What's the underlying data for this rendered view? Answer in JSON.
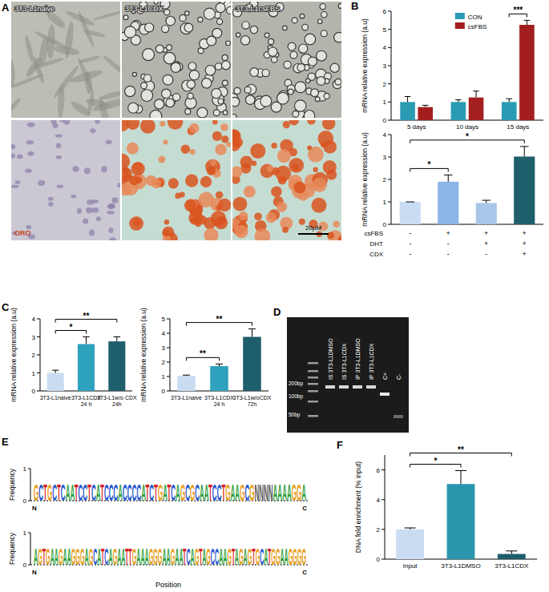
{
  "panel_labels": [
    "A",
    "B",
    "C",
    "D",
    "E",
    "F"
  ],
  "panel_a": {
    "labels": [
      "3T3-L1naive",
      "3T3-L1CDX",
      "3T3-L1csFBS"
    ],
    "stain": "ORO",
    "scale_bar": "20μM"
  },
  "chart_data": [
    {
      "type": "bar",
      "y_label": "mRNA relative expression (a.u)",
      "categories": [
        "5 days",
        "10 days",
        "15 days"
      ],
      "series": [
        {
          "name": "CON",
          "color": "#2a9bb3",
          "values": [
            1,
            1,
            1
          ],
          "errors": [
            0.3,
            0.12,
            0.18
          ]
        },
        {
          "name": "csFBS",
          "color": "#a31f1f",
          "values": [
            0.72,
            1.25,
            5.25
          ],
          "errors": [
            0.1,
            0.35,
            0.25
          ]
        }
      ],
      "ylim": [
        0,
        6
      ],
      "yticks": [
        0,
        1,
        2,
        3,
        4,
        5,
        6
      ],
      "legend": "top",
      "annotations": [
        {
          "text": "***",
          "groups": [
            2
          ]
        }
      ]
    },
    {
      "type": "bar",
      "y_label": "mRNA relative expression (a.u)",
      "values": [
        1,
        1.9,
        0.95,
        3.02
      ],
      "errors": [
        0,
        0.3,
        0.12,
        0.45
      ],
      "colors": [
        "#c9dcf2",
        "#8db5e6",
        "#a9c6e8",
        "#1f5e6b"
      ],
      "ylim": [
        0,
        4
      ],
      "yticks": [
        0,
        1,
        2,
        3,
        4
      ],
      "conditions": [
        {
          "name": "csFBS",
          "values": [
            "-",
            "+",
            "+",
            "+"
          ]
        },
        {
          "name": "DHT",
          "values": [
            "-",
            "-",
            "+",
            "+"
          ]
        },
        {
          "name": "CDX",
          "values": [
            "-",
            "-",
            "-",
            "+"
          ]
        }
      ],
      "annotations": [
        {
          "text": "*",
          "bars": [
            0,
            1
          ]
        },
        {
          "text": "*",
          "bars": [
            0,
            3
          ]
        }
      ]
    },
    {
      "type": "bar",
      "y_label": "mRNA relative expression (a.u)",
      "categories": [
        "3T3-L1naive",
        "3T3-L1CDX\n24 h",
        "3T3-L1w/o CDX\n24h"
      ],
      "values": [
        1,
        2.6,
        2.75
      ],
      "errors": [
        0.15,
        0.4,
        0.25
      ],
      "colors": [
        "#c9dcf2",
        "#2fa2bd",
        "#1f5e6b"
      ],
      "ylim": [
        0,
        4
      ],
      "yticks": [
        0,
        1,
        2,
        3,
        4
      ],
      "annotations": [
        {
          "text": "*",
          "bars": [
            0,
            1
          ]
        },
        {
          "text": "**",
          "bars": [
            0,
            2
          ]
        }
      ]
    },
    {
      "type": "bar",
      "y_label": "mRNA relative expression (a.u)",
      "categories": [
        "3T3-L1naive",
        "3T3-L1CDX\n24 h",
        "3T3-L1w/oCDX\n72h"
      ],
      "values": [
        1.05,
        1.72,
        3.75
      ],
      "errors": [
        0.05,
        0.15,
        0.55
      ],
      "colors": [
        "#c9dcf2",
        "#2fa2bd",
        "#1f5e6b"
      ],
      "ylim": [
        0,
        5
      ],
      "yticks": [
        0,
        1,
        2,
        3,
        4,
        5
      ],
      "annotations": [
        {
          "text": "**",
          "bars": [
            0,
            1
          ]
        },
        {
          "text": "**",
          "bars": [
            0,
            2
          ]
        }
      ]
    },
    {
      "type": "bar",
      "y_label": "DNA fold enrichment (% input)",
      "categories": [
        "Input",
        "3T3-L1DMSO",
        "3T3-L1CDX"
      ],
      "values": [
        2.0,
        5.05,
        0.35
      ],
      "errors": [
        0.1,
        0.9,
        0.2
      ],
      "colors": [
        "#c9dcf2",
        "#2a96ad",
        "#1f5e6b"
      ],
      "ylim": [
        0,
        7
      ],
      "yticks": [
        0,
        2,
        4,
        6
      ],
      "annotations": [
        {
          "text": "*",
          "bars": [
            0,
            1
          ]
        },
        {
          "text": "**",
          "bars": [
            0,
            2
          ]
        }
      ]
    }
  ],
  "panel_d": {
    "lanes": [
      "IS 3T3-L1DMSO",
      "IS 3T3-L1CDX",
      "IP 3T3-L1DMSO",
      "IP 3T3-L1CDX",
      "C+",
      "C-"
    ],
    "ladder": [
      "200bp",
      "100bp",
      "50bp"
    ]
  },
  "panel_e": {
    "y_label": "Frequency",
    "x_label": "Position",
    "start": "N",
    "end": "C",
    "yticks": [
      0,
      1
    ],
    "sequences": [
      "GCTGCTCAATCCTCATCCCACCCCATCTGATCAGCGCAATCCTGAAGCGNNNNAAAAGGA",
      "AGTGAAGAAGGGAGCATCAGAATTGAAAGGGAAGAATCAGTAGCCAAGTAGAGTGCATGGAAGGGG"
    ]
  }
}
